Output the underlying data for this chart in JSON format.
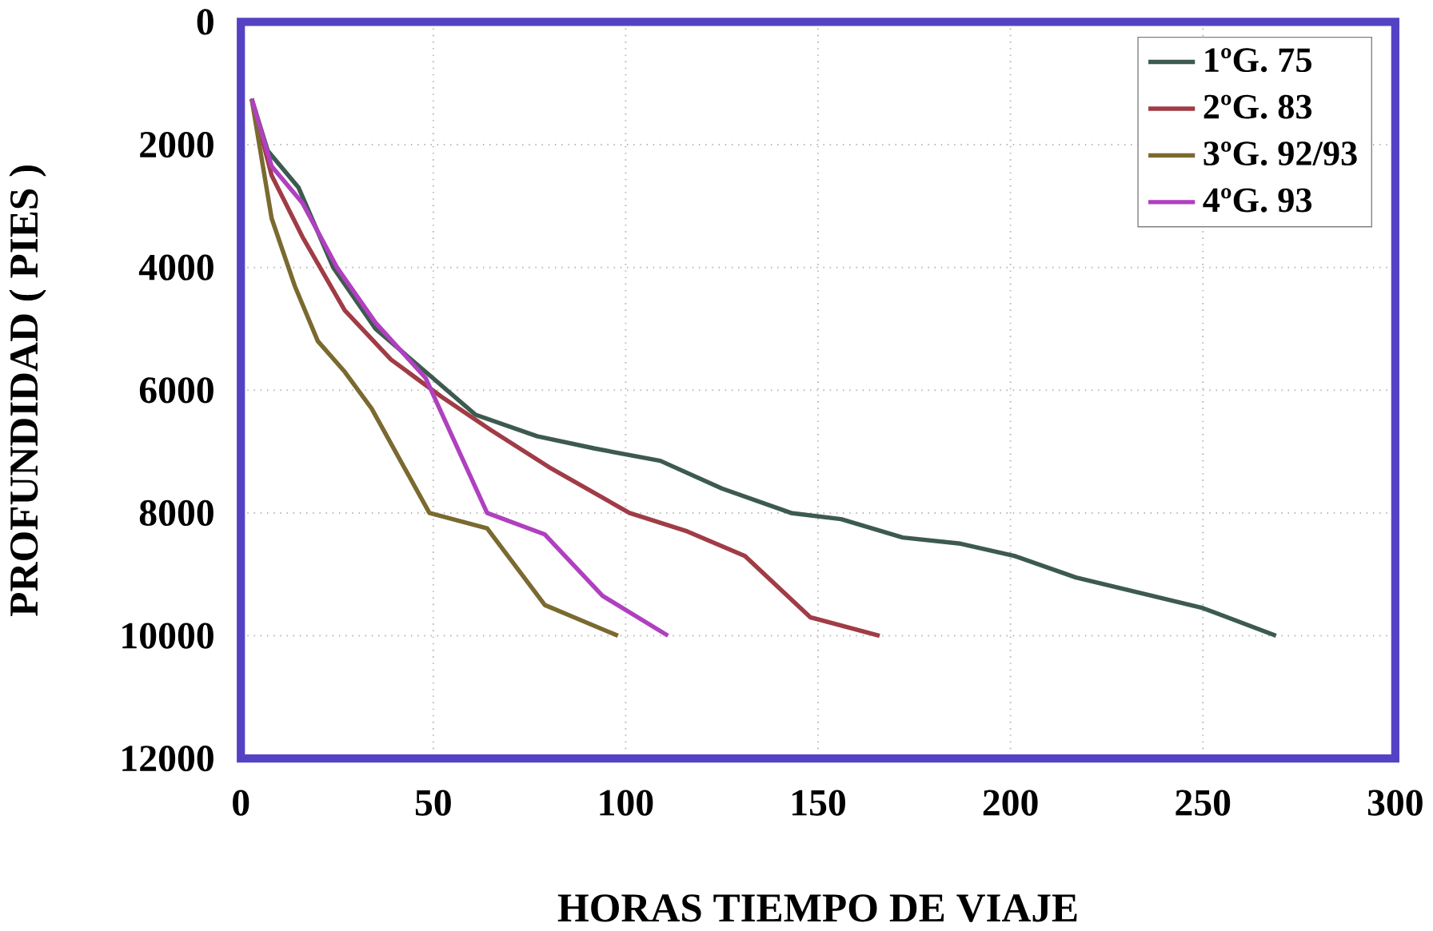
{
  "chart_data": {
    "type": "line",
    "xlabel": "HORAS TIEMPO DE VIAJE",
    "ylabel": "PROFUNDIDAD ( PIES )",
    "xlim": [
      0,
      300
    ],
    "xticks": [
      0,
      50,
      100,
      150,
      200,
      250,
      300
    ],
    "ylim": [
      12000,
      0
    ],
    "yticks": [
      0,
      2000,
      4000,
      6000,
      8000,
      10000,
      12000
    ],
    "grid": true,
    "legend": "top right",
    "marker": "none",
    "line_style": "solid",
    "series": [
      {
        "name": "1ºG. 75",
        "color": "#3d5a4f",
        "x": [
          2.8,
          7,
          15,
          24,
          35,
          48,
          61,
          77,
          92,
          109,
          125,
          143,
          156,
          172,
          187,
          201,
          217,
          250,
          269
        ],
        "values": [
          1250,
          2100,
          2700,
          4000,
          5000,
          5700,
          6400,
          6750,
          6950,
          7150,
          7600,
          8000,
          8100,
          8400,
          8500,
          8700,
          9050,
          9550,
          10000
        ]
      },
      {
        "name": "2ºG. 83",
        "color": "#a03c46",
        "x": [
          2.8,
          8,
          16,
          27,
          39,
          52,
          65,
          80,
          101,
          116,
          131,
          148,
          166
        ],
        "values": [
          1250,
          2500,
          3500,
          4700,
          5500,
          6100,
          6650,
          7250,
          8000,
          8300,
          8700,
          9700,
          10000
        ]
      },
      {
        "name": "3ºG. 92/93",
        "color": "#7a6a30",
        "x": [
          2.8,
          8,
          14,
          20,
          27,
          34,
          49,
          64,
          79,
          98
        ],
        "values": [
          1250,
          3200,
          4300,
          5200,
          5700,
          6300,
          8000,
          8250,
          9500,
          10000
        ]
      },
      {
        "name": "4ºG. 93",
        "color": "#b040c0",
        "x": [
          2.8,
          8,
          16,
          25,
          35,
          48,
          64,
          79,
          94,
          111
        ],
        "values": [
          1250,
          2350,
          2950,
          4000,
          4900,
          5800,
          8000,
          8350,
          9350,
          10000
        ]
      }
    ]
  }
}
